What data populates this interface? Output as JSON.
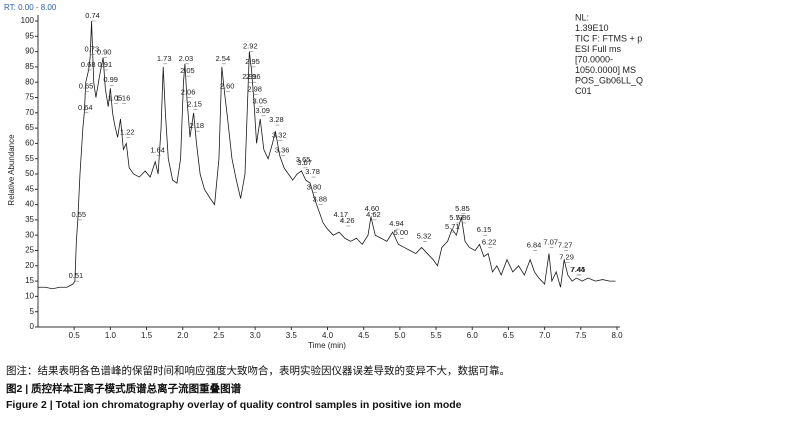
{
  "chart_data": {
    "type": "line",
    "rt_label": "RT: 0.00 - 8.00",
    "info": [
      "NL:",
      "1.39E10",
      "TIC F: FTMS + p",
      "ESI Full ms",
      "[70.0000-",
      "1050.0000] MS",
      "POS_Gb06LL_Q",
      "C01"
    ],
    "x_label": "Time (min)",
    "y_label": "Relative Abundance",
    "xlim": [
      0,
      8
    ],
    "ylim": [
      0,
      100
    ],
    "xticks": [
      0.5,
      {
        "value": 1,
        "label": "1.0"
      },
      1.5,
      {
        "value": 2,
        "label": "2.0"
      },
      2.5,
      {
        "value": 3,
        "label": "3.0"
      },
      3.5,
      {
        "value": 4,
        "label": "4.0"
      },
      4.5,
      {
        "value": 5,
        "label": "5.0"
      },
      5.5,
      {
        "value": 6,
        "label": "6.0"
      },
      6.5,
      {
        "value": 7,
        "label": "7.0"
      },
      7.5,
      {
        "value": 8,
        "label": "8.0"
      }
    ],
    "yticks": [
      0,
      5,
      10,
      15,
      20,
      25,
      30,
      35,
      40,
      45,
      50,
      55,
      60,
      65,
      70,
      75,
      80,
      85,
      90,
      95,
      100
    ],
    "x": [
      0.0,
      0.1,
      0.2,
      0.3,
      0.4,
      0.48,
      0.51,
      0.53,
      0.55,
      0.58,
      0.62,
      0.64,
      0.66,
      0.7,
      0.72,
      0.74,
      0.77,
      0.8,
      0.85,
      0.9,
      0.93,
      0.97,
      1.0,
      1.03,
      1.06,
      1.1,
      1.14,
      1.18,
      1.22,
      1.26,
      1.32,
      1.4,
      1.48,
      1.55,
      1.62,
      1.66,
      1.7,
      1.73,
      1.76,
      1.8,
      1.86,
      1.92,
      1.97,
      2.01,
      2.03,
      2.06,
      2.1,
      2.15,
      2.19,
      2.24,
      2.3,
      2.38,
      2.44,
      2.5,
      2.54,
      2.58,
      2.62,
      2.68,
      2.74,
      2.8,
      2.86,
      2.92,
      2.95,
      2.98,
      3.02,
      3.07,
      3.12,
      3.18,
      3.24,
      3.28,
      3.34,
      3.4,
      3.46,
      3.52,
      3.58,
      3.64,
      3.7,
      3.76,
      3.82,
      3.88,
      3.94,
      4.0,
      4.08,
      4.16,
      4.24,
      4.32,
      4.4,
      4.48,
      4.56,
      4.6,
      4.66,
      4.74,
      4.82,
      4.9,
      4.98,
      5.06,
      5.14,
      5.22,
      5.3,
      5.38,
      5.46,
      5.52,
      5.58,
      5.66,
      5.72,
      5.78,
      5.85,
      5.9,
      5.96,
      6.04,
      6.1,
      6.16,
      6.22,
      6.28,
      6.34,
      6.4,
      6.48,
      6.56,
      6.64,
      6.72,
      6.8,
      6.86,
      6.92,
      7.0,
      7.06,
      7.1,
      7.16,
      7.22,
      7.27,
      7.32,
      7.38,
      7.44,
      7.52,
      7.6,
      7.7,
      7.8,
      7.9,
      7.98
    ],
    "series": [
      {
        "color": "#1a1a1a",
        "values": [
          13,
          13,
          12.5,
          13,
          13,
          14,
          15,
          28,
          35,
          50,
          65,
          70,
          80,
          84,
          88,
          100,
          80,
          75,
          82,
          88,
          78,
          72,
          78,
          70,
          66,
          62,
          68,
          58,
          60,
          52,
          50,
          49,
          51,
          49,
          54,
          50,
          65,
          85,
          70,
          55,
          48,
          47,
          55,
          80,
          86,
          74,
          62,
          70,
          60,
          50,
          45,
          42,
          40,
          55,
          85,
          76,
          68,
          55,
          48,
          42,
          50,
          90,
          84,
          75,
          60,
          68,
          58,
          55,
          60,
          64,
          56,
          52,
          50,
          48,
          50,
          51,
          48,
          47,
          42,
          38,
          34,
          32,
          30,
          31,
          29,
          28,
          29,
          27,
          30,
          36,
          30,
          29,
          28,
          31,
          27,
          26,
          25,
          24,
          26,
          24,
          22,
          20,
          26,
          28,
          32,
          30,
          36,
          28,
          26,
          25,
          27,
          23,
          24,
          18,
          20,
          17,
          22,
          18,
          20,
          17,
          22,
          18,
          16,
          14,
          24,
          15,
          18,
          13,
          22,
          17,
          15,
          16,
          15,
          16,
          15,
          15.5,
          15,
          15
        ]
      }
    ],
    "peaks": [
      {
        "label": "0.51",
        "x": 0.51,
        "y": 15
      },
      {
        "label": "0.55",
        "x": 0.55,
        "y": 35
      },
      {
        "label": "0.64",
        "x": 0.64,
        "y": 70
      },
      {
        "label": "0.65",
        "x": 0.65,
        "y": 77
      },
      {
        "label": "0.68",
        "x": 0.68,
        "y": 84
      },
      {
        "label": "0.73",
        "x": 0.73,
        "y": 89
      },
      {
        "label": "0.74",
        "x": 0.74,
        "y": 100
      },
      {
        "label": "0.90",
        "x": 0.9,
        "y": 88
      },
      {
        "label": "0.91",
        "x": 0.91,
        "y": 84
      },
      {
        "label": "0.99",
        "x": 0.99,
        "y": 79
      },
      {
        "label": "1.05",
        "x": 1.05,
        "y": 73
      },
      {
        "label": "1.16",
        "x": 1.16,
        "y": 73
      },
      {
        "label": "1.22",
        "x": 1.22,
        "y": 62
      },
      {
        "label": "1.64",
        "x": 1.64,
        "y": 56
      },
      {
        "label": "1.73",
        "x": 1.73,
        "y": 86
      },
      {
        "label": "2.03",
        "x": 2.03,
        "y": 86
      },
      {
        "label": "2.05",
        "x": 2.05,
        "y": 82
      },
      {
        "label": "2.06",
        "x": 2.06,
        "y": 75
      },
      {
        "label": "2.15",
        "x": 2.15,
        "y": 71
      },
      {
        "label": "2.18",
        "x": 2.18,
        "y": 64
      },
      {
        "label": "2.54",
        "x": 2.54,
        "y": 86
      },
      {
        "label": "2.60",
        "x": 2.6,
        "y": 77
      },
      {
        "label": "2.91",
        "x": 2.91,
        "y": 80
      },
      {
        "label": "2.92",
        "x": 2.92,
        "y": 90
      },
      {
        "label": "2.95",
        "x": 2.95,
        "y": 85
      },
      {
        "label": "2.96",
        "x": 2.96,
        "y": 80
      },
      {
        "label": "2.98",
        "x": 2.98,
        "y": 76
      },
      {
        "label": "3.05",
        "x": 3.05,
        "y": 72
      },
      {
        "label": "3.09",
        "x": 3.09,
        "y": 69
      },
      {
        "label": "3.28",
        "x": 3.28,
        "y": 66
      },
      {
        "label": "3.32",
        "x": 3.32,
        "y": 61
      },
      {
        "label": "3.36",
        "x": 3.36,
        "y": 56
      },
      {
        "label": "3.65",
        "x": 3.65,
        "y": 53
      },
      {
        "label": "3.67",
        "x": 3.67,
        "y": 52
      },
      {
        "label": "3.78",
        "x": 3.78,
        "y": 49
      },
      {
        "label": "3.80",
        "x": 3.8,
        "y": 44
      },
      {
        "label": "3.88",
        "x": 3.88,
        "y": 40
      },
      {
        "label": "4.17",
        "x": 4.17,
        "y": 35
      },
      {
        "label": "4.26",
        "x": 4.26,
        "y": 33
      },
      {
        "label": "4.60",
        "x": 4.6,
        "y": 37
      },
      {
        "label": "4.62",
        "x": 4.62,
        "y": 35
      },
      {
        "label": "4.94",
        "x": 4.94,
        "y": 32
      },
      {
        "label": "5.00",
        "x": 5.0,
        "y": 29
      },
      {
        "label": "5.32",
        "x": 5.32,
        "y": 28
      },
      {
        "label": "5.77",
        "x": 5.77,
        "y": 34
      },
      {
        "label": "5.71",
        "x": 5.71,
        "y": 31
      },
      {
        "label": "5.85",
        "x": 5.85,
        "y": 37
      },
      {
        "label": "5.86",
        "x": 5.86,
        "y": 34
      },
      {
        "label": "6.15",
        "x": 6.15,
        "y": 30
      },
      {
        "label": "6.22",
        "x": 6.22,
        "y": 26
      },
      {
        "label": "6.84",
        "x": 6.84,
        "y": 25
      },
      {
        "label": "7.07",
        "x": 7.07,
        "y": 26
      },
      {
        "label": "7.27",
        "x": 7.27,
        "y": 25
      },
      {
        "label": "7.29",
        "x": 7.29,
        "y": 21
      },
      {
        "label": "7.44",
        "x": 7.44,
        "y": 17
      },
      {
        "label": "7.45",
        "x": 7.45,
        "y": 17
      }
    ]
  },
  "caption": {
    "note": "图注：结果表明各色谱峰的保留时间和响应强度大致吻合，表明实验因仪器误差导致的变异不大，数据可靠。",
    "title_cn": "图2 | 质控样本正离子模式质谱总离子流图重叠图谱",
    "title_en": "Figure 2 | Total ion chromatography overlay of quality control samples in positive ion mode"
  }
}
